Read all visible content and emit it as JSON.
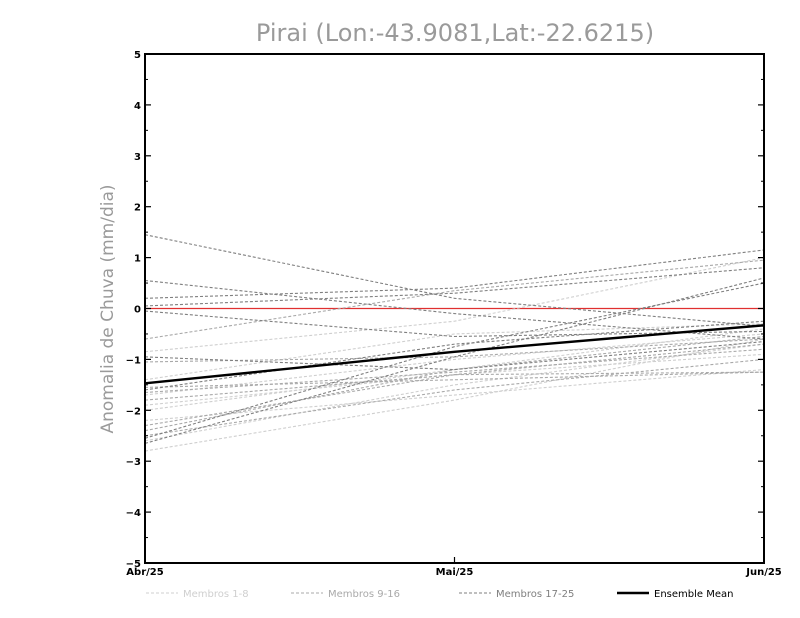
{
  "chart_data": {
    "type": "line",
    "title": "Pirai (Lon:-43.9081,Lat:-22.6215)",
    "xlabel": "",
    "ylabel": "Anomalia de Chuva (mm/dia)",
    "categories": [
      "Abr/25",
      "Mai/25",
      "Jun/25"
    ],
    "ylim": [
      -5,
      5
    ],
    "yticks": [
      5,
      4,
      3,
      2,
      1,
      0,
      -1,
      -2,
      -3,
      -4,
      -5
    ],
    "zero_line_color": "#e03030",
    "legend_position": "bottom",
    "groups": [
      {
        "name": "Membros 1-8",
        "color": "#cfcfcf",
        "dash": true
      },
      {
        "name": "Membros 9-16",
        "color": "#a9a9a9",
        "dash": true
      },
      {
        "name": "Membros 17-25",
        "color": "#7f7f7f",
        "dash": true
      },
      {
        "name": "Ensemble Mean",
        "color": "#000000",
        "dash": false
      }
    ],
    "series": [
      {
        "group": 0,
        "values": [
          -0.85,
          -0.25,
          1.0
        ]
      },
      {
        "group": 0,
        "values": [
          -1.4,
          -0.5,
          -0.3
        ]
      },
      {
        "group": 0,
        "values": [
          -1.9,
          -1.3,
          -0.9
        ]
      },
      {
        "group": 0,
        "values": [
          -2.2,
          -1.7,
          -1.2
        ]
      },
      {
        "group": 0,
        "values": [
          -2.8,
          -1.8,
          -0.6
        ]
      },
      {
        "group": 0,
        "values": [
          -2.6,
          -1.5,
          -0.7
        ]
      },
      {
        "group": 0,
        "values": [
          -2.0,
          -1.2,
          -0.4
        ]
      },
      {
        "group": 0,
        "values": [
          -1.7,
          -1.0,
          -0.5
        ]
      },
      {
        "group": 1,
        "values": [
          -0.6,
          0.35,
          0.95
        ]
      },
      {
        "group": 1,
        "values": [
          -1.05,
          -0.95,
          -0.6
        ]
      },
      {
        "group": 1,
        "values": [
          -1.8,
          -1.3,
          -0.7
        ]
      },
      {
        "group": 1,
        "values": [
          -2.5,
          -1.6,
          -1.0
        ]
      },
      {
        "group": 1,
        "values": [
          -1.55,
          -1.4,
          -1.25
        ]
      },
      {
        "group": 1,
        "values": [
          -2.4,
          -1.2,
          -0.55
        ]
      },
      {
        "group": 1,
        "values": [
          -1.65,
          -1.25,
          -0.8
        ]
      },
      {
        "group": 1,
        "values": [
          -2.3,
          -1.3,
          -1.25
        ]
      },
      {
        "group": 2,
        "values": [
          1.45,
          0.2,
          -0.35
        ]
      },
      {
        "group": 2,
        "values": [
          0.55,
          -0.1,
          -0.6
        ]
      },
      {
        "group": 2,
        "values": [
          0.2,
          0.4,
          1.15
        ]
      },
      {
        "group": 2,
        "values": [
          0.05,
          0.3,
          0.8
        ]
      },
      {
        "group": 2,
        "values": [
          -0.05,
          -0.55,
          -0.45
        ]
      },
      {
        "group": 2,
        "values": [
          -0.95,
          -1.2,
          -0.65
        ]
      },
      {
        "group": 2,
        "values": [
          -2.65,
          -0.95,
          0.6
        ]
      },
      {
        "group": 2,
        "values": [
          -2.55,
          -0.75,
          0.5
        ]
      },
      {
        "group": 2,
        "values": [
          -1.6,
          -0.7,
          -0.25
        ]
      },
      {
        "group": 3,
        "values": [
          -1.47,
          -0.85,
          -0.33
        ]
      }
    ]
  }
}
